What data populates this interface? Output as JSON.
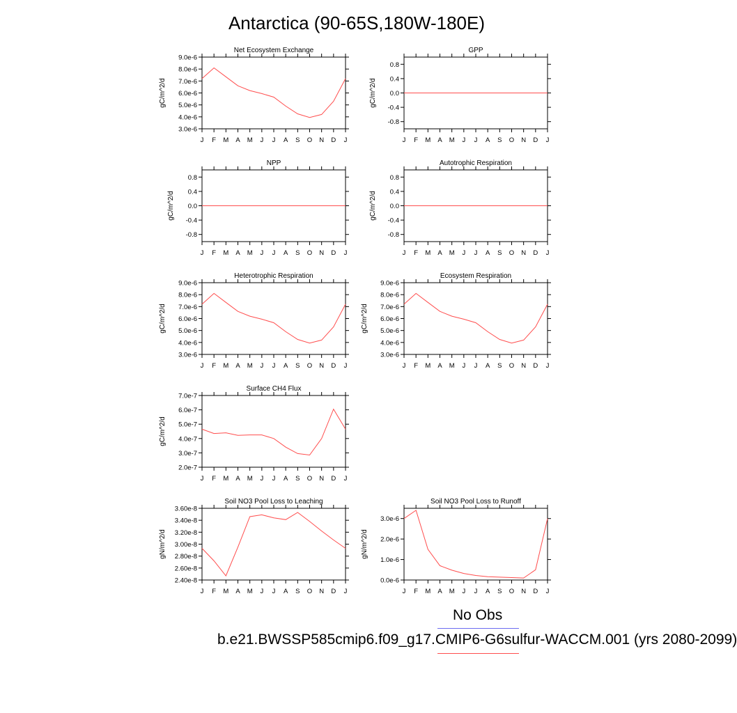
{
  "title": "Antarctica (90-65S,180W-180E)",
  "legend": {
    "obs_label": "No Obs",
    "obs_color": "#6b6bf0",
    "model_label": "b.e21.BWSSP585cmip6.f09_g17.CMIP6-G6sulfur-WACCM.001 (yrs 2080-2099)",
    "model_color": "#ff4d4d"
  },
  "chart_data": [
    {
      "type": "line",
      "title": "Net Ecosystem Exchange",
      "ylabel": "gC/m^2/d",
      "categories": [
        "J",
        "F",
        "M",
        "A",
        "M",
        "J",
        "J",
        "A",
        "S",
        "O",
        "N",
        "D",
        "J"
      ],
      "yticks": [
        "9.0e-6",
        "8.0e-6",
        "7.0e-6",
        "6.0e-6",
        "5.0e-6",
        "4.0e-6",
        "3.0e-6"
      ],
      "ylim": [
        3e-06,
        9e-06
      ],
      "values": [
        7.2e-06,
        8.1e-06,
        7.35e-06,
        6.6e-06,
        6.2e-06,
        5.95e-06,
        5.65e-06,
        4.9e-06,
        4.25e-06,
        3.95e-06,
        4.2e-06,
        5.3e-06,
        7.2e-06
      ]
    },
    {
      "type": "line",
      "title": "GPP",
      "ylabel": "gC/m^2/d",
      "categories": [
        "J",
        "F",
        "M",
        "A",
        "M",
        "J",
        "J",
        "A",
        "S",
        "O",
        "N",
        "D",
        "J"
      ],
      "yticks": [
        "0.8",
        "0.4",
        "0.0",
        "-0.4",
        "-0.8"
      ],
      "ylim": [
        -1.0,
        1.0
      ],
      "values": [
        0,
        0,
        0,
        0,
        0,
        0,
        0,
        0,
        0,
        0,
        0,
        0,
        0
      ]
    },
    {
      "type": "line",
      "title": "NPP",
      "ylabel": "gC/m^2/d",
      "categories": [
        "J",
        "F",
        "M",
        "A",
        "M",
        "J",
        "J",
        "A",
        "S",
        "O",
        "N",
        "D",
        "J"
      ],
      "yticks": [
        "0.8",
        "0.4",
        "0.0",
        "-0.4",
        "-0.8"
      ],
      "ylim": [
        -1.0,
        1.0
      ],
      "values": [
        0,
        0,
        0,
        0,
        0,
        0,
        0,
        0,
        0,
        0,
        0,
        0,
        0
      ]
    },
    {
      "type": "line",
      "title": "Autotrophic Respiration",
      "ylabel": "gC/m^2/d",
      "categories": [
        "J",
        "F",
        "M",
        "A",
        "M",
        "J",
        "J",
        "A",
        "S",
        "O",
        "N",
        "D",
        "J"
      ],
      "yticks": [
        "0.8",
        "0.4",
        "0.0",
        "-0.4",
        "-0.8"
      ],
      "ylim": [
        -1.0,
        1.0
      ],
      "values": [
        0,
        0,
        0,
        0,
        0,
        0,
        0,
        0,
        0,
        0,
        0,
        0,
        0
      ]
    },
    {
      "type": "line",
      "title": "Heterotrophic Respiration",
      "ylabel": "gC/m^2/d",
      "categories": [
        "J",
        "F",
        "M",
        "A",
        "M",
        "J",
        "J",
        "A",
        "S",
        "O",
        "N",
        "D",
        "J"
      ],
      "yticks": [
        "9.0e-6",
        "8.0e-6",
        "7.0e-6",
        "6.0e-6",
        "5.0e-6",
        "4.0e-6",
        "3.0e-6"
      ],
      "ylim": [
        3e-06,
        9e-06
      ],
      "values": [
        7.2e-06,
        8.1e-06,
        7.35e-06,
        6.6e-06,
        6.2e-06,
        5.95e-06,
        5.65e-06,
        4.9e-06,
        4.25e-06,
        3.95e-06,
        4.2e-06,
        5.3e-06,
        7.2e-06
      ]
    },
    {
      "type": "line",
      "title": "Ecosystem Respiration",
      "ylabel": "gC/m^2/d",
      "categories": [
        "J",
        "F",
        "M",
        "A",
        "M",
        "J",
        "J",
        "A",
        "S",
        "O",
        "N",
        "D",
        "J"
      ],
      "yticks": [
        "9.0e-6",
        "8.0e-6",
        "7.0e-6",
        "6.0e-6",
        "5.0e-6",
        "4.0e-6",
        "3.0e-6"
      ],
      "ylim": [
        3e-06,
        9e-06
      ],
      "values": [
        7.2e-06,
        8.1e-06,
        7.35e-06,
        6.6e-06,
        6.2e-06,
        5.95e-06,
        5.65e-06,
        4.9e-06,
        4.25e-06,
        3.95e-06,
        4.2e-06,
        5.3e-06,
        7.2e-06
      ]
    },
    {
      "type": "line",
      "title": "Surface CH4 Flux",
      "ylabel": "gC/m^2/d",
      "categories": [
        "J",
        "F",
        "M",
        "A",
        "M",
        "J",
        "J",
        "A",
        "S",
        "O",
        "N",
        "D",
        "J"
      ],
      "yticks": [
        "7.0e-7",
        "6.0e-7",
        "5.0e-7",
        "4.0e-7",
        "3.0e-7",
        "2.0e-7"
      ],
      "ylim": [
        2e-07,
        7e-07
      ],
      "values": [
        4.65e-07,
        4.35e-07,
        4.4e-07,
        4.22e-07,
        4.25e-07,
        4.25e-07,
        4e-07,
        3.4e-07,
        2.95e-07,
        2.85e-07,
        4e-07,
        6.05e-07,
        4.65e-07
      ]
    },
    {
      "type": "line",
      "title": "Soil NO3 Pool Loss to Leaching",
      "ylabel": "gN/m^2/d",
      "categories": [
        "J",
        "F",
        "M",
        "A",
        "M",
        "J",
        "J",
        "A",
        "S",
        "O",
        "N",
        "D",
        "J"
      ],
      "yticks": [
        "3.60e-8",
        "3.40e-8",
        "3.20e-8",
        "3.00e-8",
        "2.80e-8",
        "2.60e-8",
        "2.40e-8"
      ],
      "ylim": [
        2.4e-08,
        3.6e-08
      ],
      "values": [
        2.93e-08,
        2.72e-08,
        2.47e-08,
        2.95e-08,
        3.46e-08,
        3.49e-08,
        3.44e-08,
        3.41e-08,
        3.53e-08,
        3.38e-08,
        3.22e-08,
        3.07e-08,
        2.93e-08
      ]
    },
    {
      "type": "line",
      "title": "Soil NO3 Pool Loss to Runoff",
      "ylabel": "gN/m^2/d",
      "categories": [
        "J",
        "F",
        "M",
        "A",
        "M",
        "J",
        "J",
        "A",
        "S",
        "O",
        "N",
        "D",
        "J"
      ],
      "yticks": [
        "3.0e-6",
        "2.0e-6",
        "1.0e-6",
        "0.0e-6"
      ],
      "ylim": [
        0,
        3.5e-06
      ],
      "values": [
        3e-06,
        3.4e-06,
        1.5e-06,
        7e-07,
        4.8e-07,
        3.2e-07,
        2.2e-07,
        1.6e-07,
        1.4e-07,
        1.2e-07,
        1e-07,
        5e-07,
        3e-06
      ]
    }
  ]
}
